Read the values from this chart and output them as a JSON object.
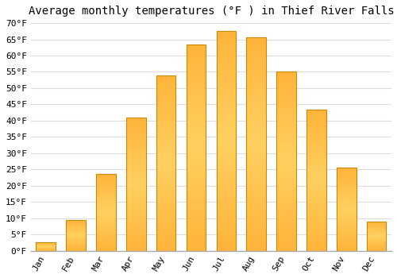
{
  "months": [
    "Jan",
    "Feb",
    "Mar",
    "Apr",
    "May",
    "Jun",
    "Jul",
    "Aug",
    "Sep",
    "Oct",
    "Nov",
    "Dec"
  ],
  "temperatures": [
    2.5,
    9.5,
    23.5,
    41.0,
    54.0,
    63.5,
    67.5,
    65.5,
    55.0,
    43.5,
    25.5,
    9.0
  ],
  "bar_color_light": "#FFD060",
  "bar_color_dark": "#FFA020",
  "bar_edge_color": "#CC8800",
  "title": "Average monthly temperatures (°F ) in Thief River Falls",
  "ylim": [
    0,
    70
  ],
  "background_color": "#ffffff",
  "grid_color": "#dddddd",
  "title_fontsize": 10,
  "tick_fontsize": 8,
  "font_family": "monospace"
}
